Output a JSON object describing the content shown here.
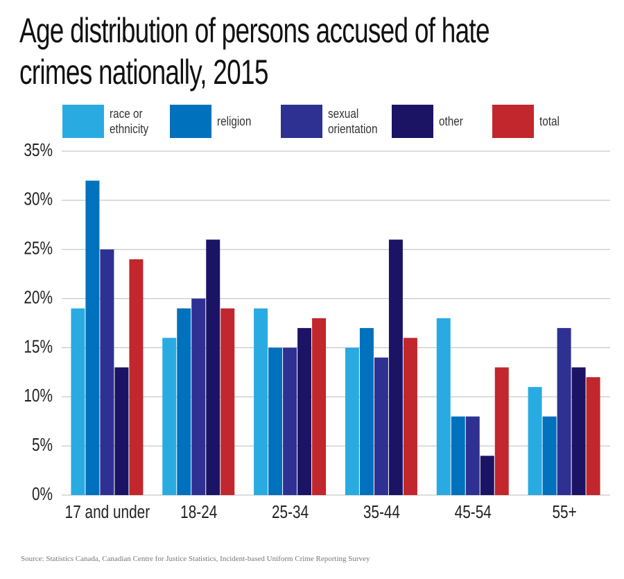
{
  "chart_data": {
    "type": "bar",
    "title": "Age distribution of persons accused of hate crimes nationally, 2015",
    "source": "Source: Statistics Canada, Canadian Centre for Justice Statistics, Incident-based Uniform Crime Reporting Survey",
    "categories": [
      "17 and under",
      "18-24",
      "25-34",
      "35-44",
      "45-54",
      "55+"
    ],
    "series": [
      {
        "name": "race or ethnicity",
        "color": "#29abe2",
        "values": [
          19,
          16,
          19,
          15,
          18,
          11
        ]
      },
      {
        "name": "religion",
        "color": "#0071bc",
        "values": [
          32,
          19,
          15,
          17,
          8,
          8
        ]
      },
      {
        "name": "sexual orientation",
        "color": "#2e3192",
        "values": [
          25,
          20,
          15,
          14,
          8,
          17
        ]
      },
      {
        "name": "other",
        "color": "#1b1464",
        "values": [
          13,
          26,
          17,
          26,
          4,
          13
        ]
      },
      {
        "name": "total",
        "color": "#c1272d",
        "values": [
          24,
          19,
          18,
          16,
          13,
          12
        ]
      }
    ],
    "ylim": [
      0,
      35
    ],
    "yticks": [
      {
        "value": 0,
        "label": "0%"
      },
      {
        "value": 5,
        "label": "5%"
      },
      {
        "value": 10,
        "label": "10%"
      },
      {
        "value": 15,
        "label": "15%"
      },
      {
        "value": 20,
        "label": "20%"
      },
      {
        "value": 25,
        "label": "25%"
      },
      {
        "value": 30,
        "label": "30%"
      },
      {
        "value": 35,
        "label": "35%"
      }
    ],
    "grid": true
  }
}
